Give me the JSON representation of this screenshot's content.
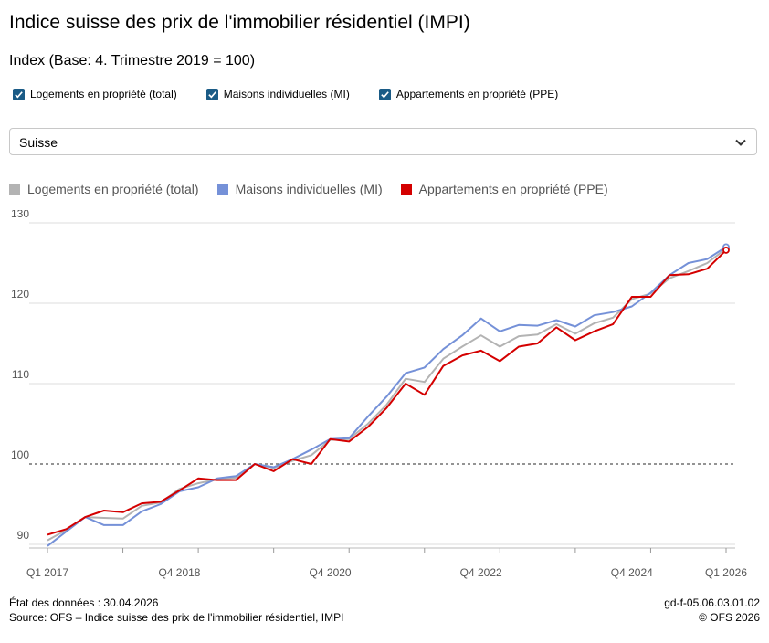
{
  "title": "Indice suisse des prix de l'immobilier résidentiel (IMPI)",
  "subtitle": "Index (Base: 4. Trimestre 2019 = 100)",
  "checkboxes": [
    {
      "label": "Logements en propriété (total)",
      "checked": true
    },
    {
      "label": "Maisons individuelles (MI)",
      "checked": true
    },
    {
      "label": "Appartements en propriété (PPE)",
      "checked": true
    }
  ],
  "checkbox_color": "#1a5b86",
  "region_select": {
    "value": "Suisse",
    "icon": "chevron-down-icon"
  },
  "footer": {
    "date_label": "État des données : 30.04.2026",
    "source": "Source: OFS – Indice suisse des prix de l'immobilier résidentiel, IMPI",
    "code": "gd-f-05.06.03.01.02",
    "copyright": "© OFS 2026"
  },
  "chart_data": {
    "type": "line",
    "x": [
      "Q1 2017",
      "Q2 2017",
      "Q3 2017",
      "Q4 2017",
      "Q1 2018",
      "Q2 2018",
      "Q3 2018",
      "Q4 2018",
      "Q1 2019",
      "Q2 2019",
      "Q3 2019",
      "Q4 2019",
      "Q1 2020",
      "Q2 2020",
      "Q3 2020",
      "Q4 2020",
      "Q1 2021",
      "Q2 2021",
      "Q3 2021",
      "Q4 2021",
      "Q1 2022",
      "Q2 2022",
      "Q3 2022",
      "Q4 2022",
      "Q1 2023",
      "Q2 2023",
      "Q3 2023",
      "Q4 2023",
      "Q1 2024",
      "Q2 2024",
      "Q3 2024",
      "Q4 2024",
      "Q1 2025",
      "Q2 2025",
      "Q3 2025",
      "Q4 2025",
      "Q1 2026"
    ],
    "x_tick_labels": [
      "Q1 2017",
      "Q4 2018",
      "Q4 2020",
      "Q4 2022",
      "Q4 2024",
      "Q1 2026"
    ],
    "x_label_positions": [
      0,
      7,
      15,
      23,
      31,
      36
    ],
    "series": [
      {
        "name": "Logements en propriété (total)",
        "color": "#b3b3b3",
        "values": [
          90.5,
          91.8,
          93.4,
          93.3,
          93.2,
          94.8,
          95.2,
          96.9,
          97.6,
          98.1,
          98.3,
          100.0,
          99.5,
          100.4,
          101.1,
          103.0,
          103.1,
          105.0,
          107.4,
          110.6,
          110.2,
          113.1,
          114.6,
          116.0,
          114.6,
          115.9,
          116.1,
          117.4,
          116.2,
          117.5,
          118.2,
          120.5,
          121.2,
          123.1,
          124.0,
          125.0,
          126.8
        ]
      },
      {
        "name": "Maisons individuelles (MI)",
        "color": "#7591d8",
        "values": [
          89.8,
          91.6,
          93.4,
          92.4,
          92.4,
          94.1,
          95.0,
          96.6,
          97.1,
          98.2,
          98.5,
          100.0,
          99.6,
          100.6,
          101.8,
          103.1,
          103.2,
          105.9,
          108.4,
          111.3,
          112.0,
          114.3,
          116.0,
          118.1,
          116.5,
          117.3,
          117.2,
          117.9,
          117.1,
          118.5,
          118.9,
          119.6,
          121.3,
          123.5,
          125.0,
          125.5,
          127.0
        ]
      },
      {
        "name": "Appartements en propriété (PPE)",
        "color": "#d40000",
        "values": [
          91.2,
          91.9,
          93.4,
          94.2,
          94.0,
          95.1,
          95.3,
          96.7,
          98.2,
          98.0,
          98.0,
          100.0,
          99.1,
          100.6,
          100.0,
          103.1,
          102.8,
          104.6,
          107.0,
          110.0,
          108.6,
          112.2,
          113.5,
          114.1,
          112.8,
          114.6,
          115.0,
          117.0,
          115.4,
          116.5,
          117.4,
          120.8,
          120.8,
          123.5,
          123.6,
          124.3,
          126.6
        ]
      }
    ],
    "ylim": [
      90,
      130
    ],
    "yticks": [
      90,
      100,
      110,
      120,
      130
    ],
    "reference_line": 100,
    "grid": true,
    "legend_position": "top-left"
  }
}
